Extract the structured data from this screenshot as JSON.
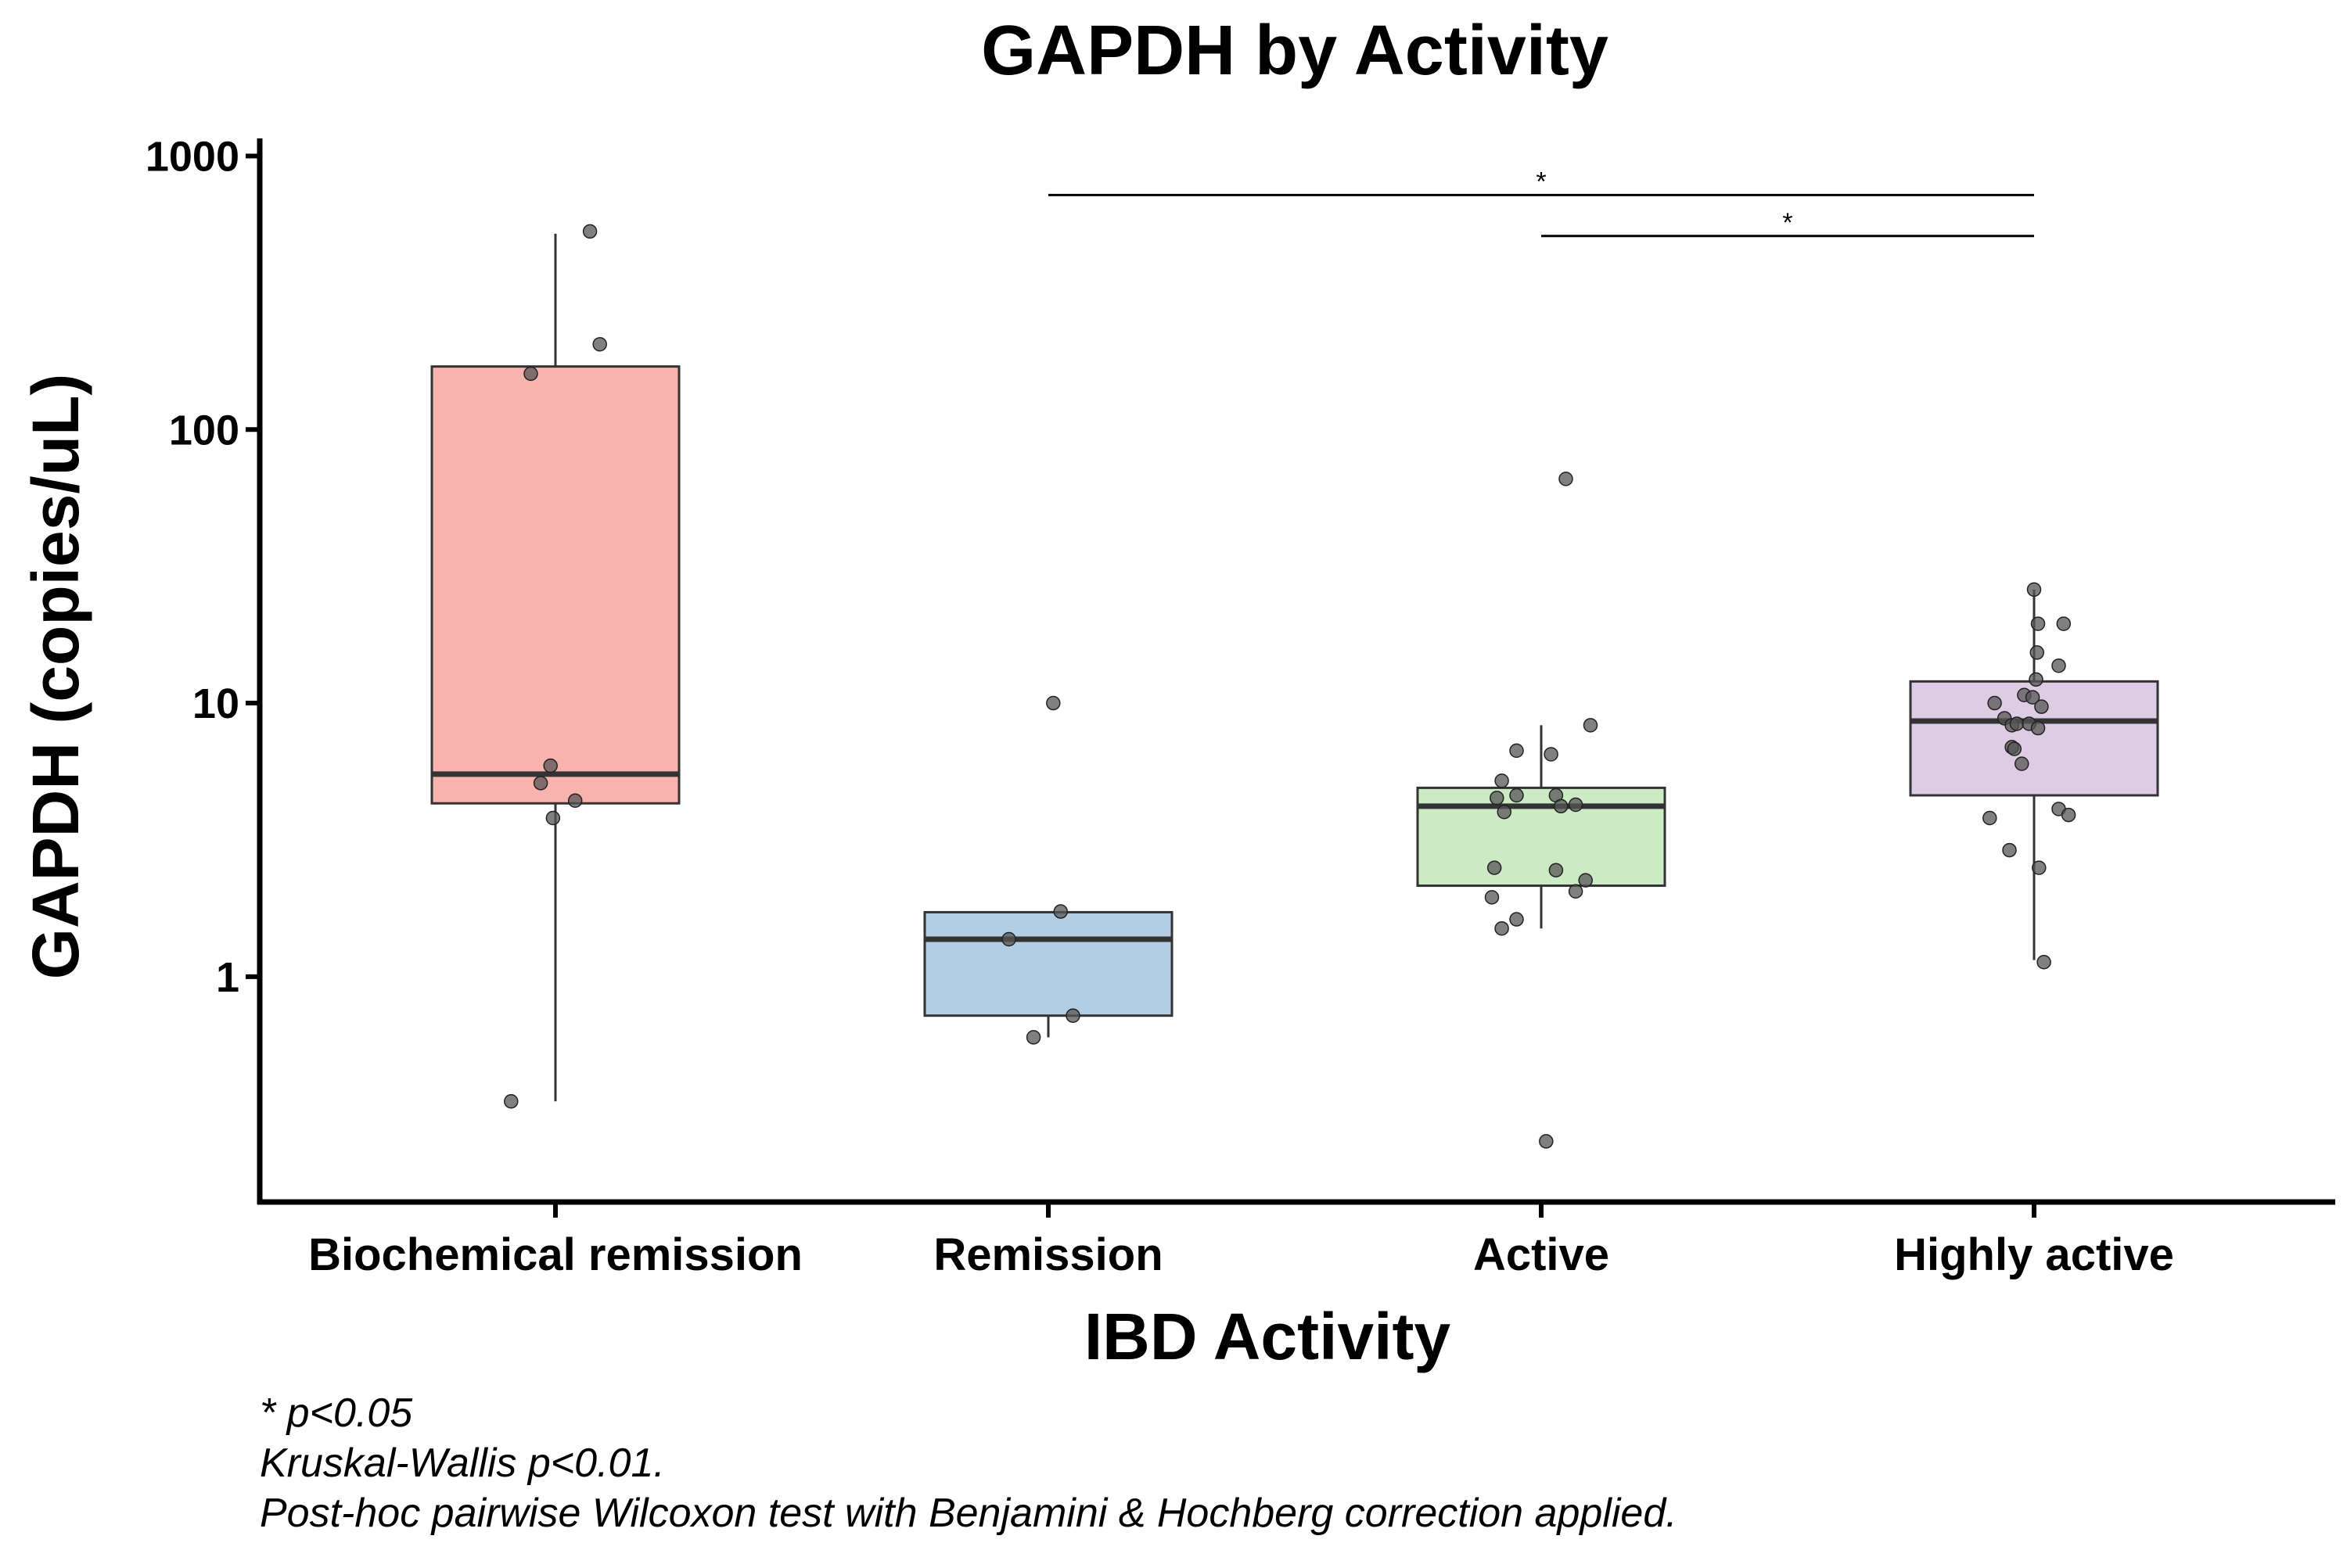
{
  "chart_data": {
    "type": "box",
    "title": "GAPDH by Activity",
    "xlabel": "IBD Activity",
    "ylabel": "GAPDH (copies/uL)",
    "yscale": "log",
    "ylim": [
      0.15,
      1100
    ],
    "yticks": [
      1,
      10,
      100,
      1000
    ],
    "ytick_labels": [
      "1",
      "10",
      "100",
      "1000"
    ],
    "categories": [
      "Biochemical remission",
      "Remission",
      "Active",
      "Highly active"
    ],
    "colors": [
      "#f9b3ae",
      "#b3cde3",
      "#ccebc5",
      "#decbe4"
    ],
    "boxes": [
      {
        "q1": 4.3,
        "median": 5.5,
        "q3": 170,
        "whisker_low": 0.35,
        "whisker_high": 520
      },
      {
        "q1": 0.72,
        "median": 1.37,
        "q3": 1.72,
        "whisker_low": 0.6,
        "whisker_high": 1.72
      },
      {
        "q1": 2.15,
        "median": 4.2,
        "q3": 4.9,
        "whisker_low": 1.5,
        "whisker_high": 8.3
      },
      {
        "q1": 4.6,
        "median": 8.6,
        "q3": 12,
        "whisker_low": 1.15,
        "whisker_high": 26
      }
    ],
    "points": [
      {
        "category": 0,
        "jitter": 0.07,
        "y": 530
      },
      {
        "category": 0,
        "jitter": 0.09,
        "y": 205
      },
      {
        "category": 0,
        "jitter": -0.05,
        "y": 160
      },
      {
        "category": 0,
        "jitter": -0.01,
        "y": 5.9
      },
      {
        "category": 0,
        "jitter": -0.03,
        "y": 5.1
      },
      {
        "category": 0,
        "jitter": 0.04,
        "y": 4.4
      },
      {
        "category": 0,
        "jitter": -0.005,
        "y": 3.8
      },
      {
        "category": 0,
        "jitter": -0.09,
        "y": 0.35
      },
      {
        "category": 1,
        "jitter": 0.01,
        "y": 10
      },
      {
        "category": 1,
        "jitter": 0.025,
        "y": 1.73
      },
      {
        "category": 1,
        "jitter": -0.08,
        "y": 1.37
      },
      {
        "category": 1,
        "jitter": 0.05,
        "y": 0.72
      },
      {
        "category": 1,
        "jitter": -0.03,
        "y": 0.6
      },
      {
        "category": 2,
        "jitter": 0.05,
        "y": 66
      },
      {
        "category": 2,
        "jitter": 0.1,
        "y": 8.3
      },
      {
        "category": 2,
        "jitter": -0.05,
        "y": 6.7
      },
      {
        "category": 2,
        "jitter": 0.02,
        "y": 6.5
      },
      {
        "category": 2,
        "jitter": -0.08,
        "y": 5.2
      },
      {
        "category": 2,
        "jitter": -0.05,
        "y": 4.6
      },
      {
        "category": 2,
        "jitter": -0.09,
        "y": 4.5
      },
      {
        "category": 2,
        "jitter": 0.03,
        "y": 4.6
      },
      {
        "category": 2,
        "jitter": 0.04,
        "y": 4.2
      },
      {
        "category": 2,
        "jitter": 0.07,
        "y": 4.25
      },
      {
        "category": 2,
        "jitter": -0.075,
        "y": 4.0
      },
      {
        "category": 2,
        "jitter": -0.095,
        "y": 2.5
      },
      {
        "category": 2,
        "jitter": 0.03,
        "y": 2.45
      },
      {
        "category": 2,
        "jitter": 0.09,
        "y": 2.25
      },
      {
        "category": 2,
        "jitter": 0.07,
        "y": 2.05
      },
      {
        "category": 2,
        "jitter": -0.1,
        "y": 1.95
      },
      {
        "category": 2,
        "jitter": -0.05,
        "y": 1.62
      },
      {
        "category": 2,
        "jitter": -0.08,
        "y": 1.5
      },
      {
        "category": 2,
        "jitter": 0.01,
        "y": 0.25
      },
      {
        "category": 3,
        "jitter": 0.0,
        "y": 26
      },
      {
        "category": 3,
        "jitter": 0.06,
        "y": 19.5
      },
      {
        "category": 3,
        "jitter": 0.008,
        "y": 19.5
      },
      {
        "category": 3,
        "jitter": 0.006,
        "y": 15.3
      },
      {
        "category": 3,
        "jitter": 0.05,
        "y": 13.7
      },
      {
        "category": 3,
        "jitter": 0.004,
        "y": 12.2
      },
      {
        "category": 3,
        "jitter": -0.02,
        "y": 10.7
      },
      {
        "category": 3,
        "jitter": -0.003,
        "y": 10.5
      },
      {
        "category": 3,
        "jitter": -0.08,
        "y": 10.0
      },
      {
        "category": 3,
        "jitter": 0.015,
        "y": 9.7
      },
      {
        "category": 3,
        "jitter": -0.06,
        "y": 8.8
      },
      {
        "category": 3,
        "jitter": -0.045,
        "y": 8.3
      },
      {
        "category": 3,
        "jitter": -0.035,
        "y": 8.4
      },
      {
        "category": 3,
        "jitter": -0.01,
        "y": 8.4
      },
      {
        "category": 3,
        "jitter": 0.008,
        "y": 8.1
      },
      {
        "category": 3,
        "jitter": -0.045,
        "y": 6.9
      },
      {
        "category": 3,
        "jitter": -0.04,
        "y": 6.8
      },
      {
        "category": 3,
        "jitter": -0.025,
        "y": 6.0
      },
      {
        "category": 3,
        "jitter": 0.05,
        "y": 4.1
      },
      {
        "category": 3,
        "jitter": 0.07,
        "y": 3.9
      },
      {
        "category": 3,
        "jitter": -0.09,
        "y": 3.8
      },
      {
        "category": 3,
        "jitter": -0.05,
        "y": 2.9
      },
      {
        "category": 3,
        "jitter": 0.01,
        "y": 2.5
      },
      {
        "category": 3,
        "jitter": 0.02,
        "y": 1.13
      }
    ],
    "significance": [
      {
        "from": 1,
        "to": 3,
        "label": "*",
        "y": 720
      },
      {
        "from": 2,
        "to": 3,
        "label": "*",
        "y": 510
      }
    ],
    "grid": false,
    "legend": "none"
  },
  "footnotes": [
    "* p<0.05",
    "Kruskal-Wallis p<0.01.",
    "Post-hoc pairwise Wilcoxon test with Benjamini & Hochberg correction applied."
  ]
}
